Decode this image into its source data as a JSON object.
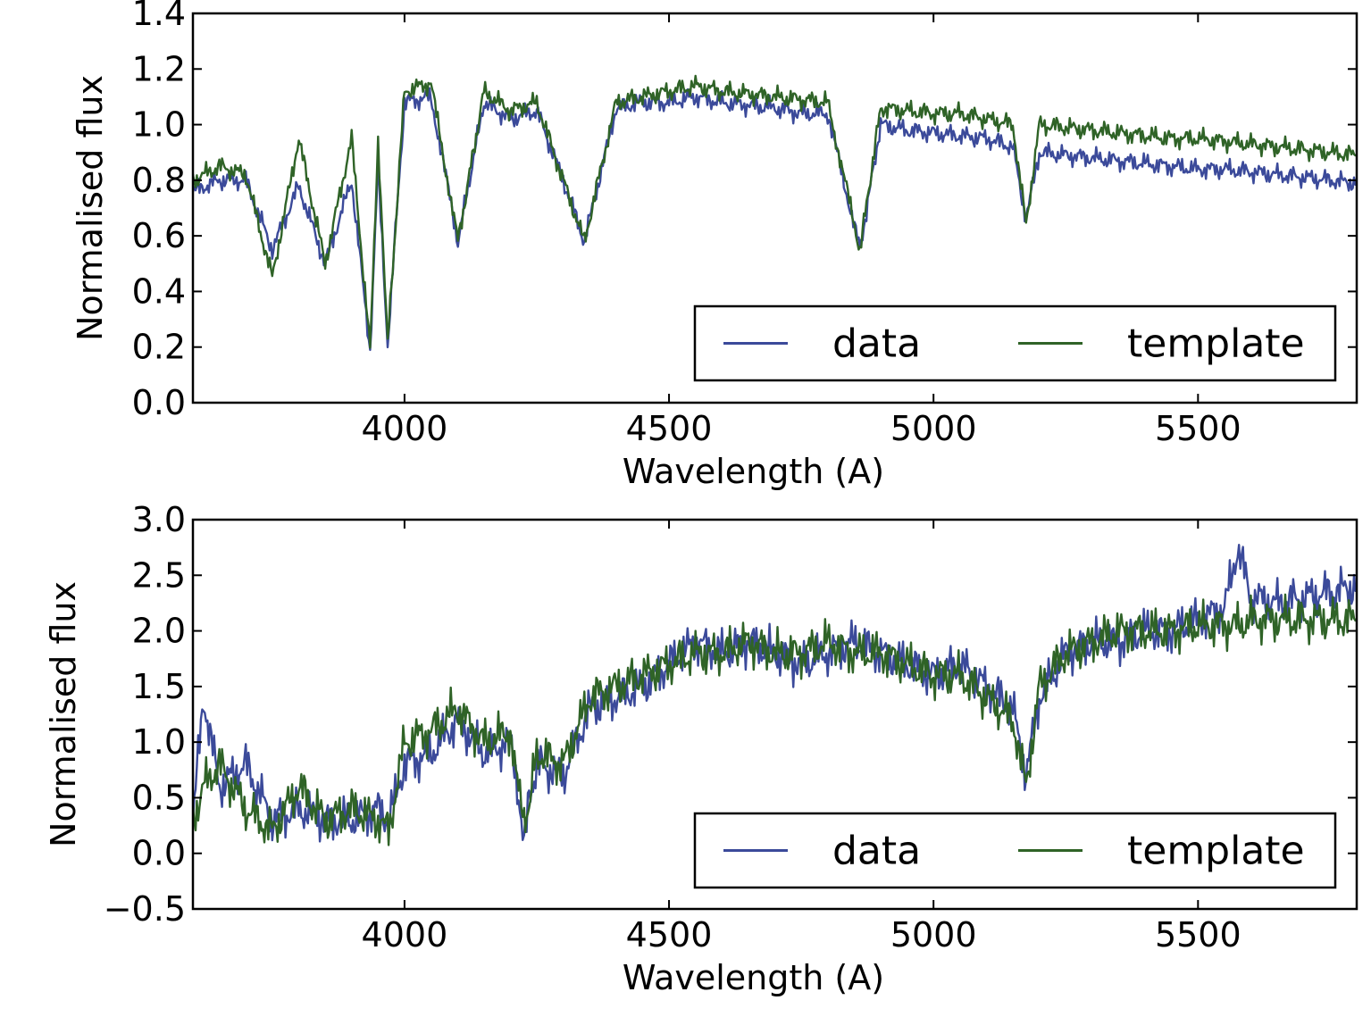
{
  "chart_data": [
    {
      "type": "line",
      "xlabel": "Wavelength (A)",
      "ylabel": "Normalised flux",
      "xlim": [
        3600,
        5800
      ],
      "ylim": [
        0.0,
        1.4
      ],
      "xticks": [
        4000,
        4500,
        5000,
        5500
      ],
      "yticks": [
        0.0,
        0.2,
        0.4,
        0.6,
        0.8,
        1.0,
        1.2,
        1.4
      ],
      "ytick_labels": [
        "0.0",
        "0.2",
        "0.4",
        "0.6",
        "0.8",
        "1.0",
        "1.2",
        "1.4"
      ],
      "legend": "lower-right",
      "series": [
        {
          "name": "data",
          "color": "#3b4a9a",
          "x": [
            3600,
            3650,
            3700,
            3750,
            3800,
            3850,
            3900,
            3935,
            3950,
            3968,
            4000,
            4050,
            4101,
            4150,
            4200,
            4250,
            4300,
            4340,
            4400,
            4450,
            4500,
            4550,
            4600,
            4650,
            4700,
            4750,
            4800,
            4861,
            4900,
            4950,
            5000,
            5050,
            5100,
            5150,
            5175,
            5200,
            5250,
            5300,
            5350,
            5400,
            5450,
            5500,
            5550,
            5600,
            5650,
            5700,
            5750,
            5800
          ],
          "y": [
            0.76,
            0.8,
            0.8,
            0.55,
            0.78,
            0.5,
            0.8,
            0.19,
            0.85,
            0.21,
            1.08,
            1.1,
            0.58,
            1.08,
            1.02,
            1.05,
            0.8,
            0.58,
            1.06,
            1.08,
            1.08,
            1.1,
            1.08,
            1.07,
            1.06,
            1.04,
            1.04,
            0.55,
            1.0,
            0.98,
            0.97,
            0.96,
            0.95,
            0.92,
            0.66,
            0.9,
            0.89,
            0.88,
            0.87,
            0.86,
            0.85,
            0.84,
            0.84,
            0.83,
            0.82,
            0.81,
            0.8,
            0.79
          ]
        },
        {
          "name": "template",
          "color": "#2f6327",
          "x": [
            3600,
            3650,
            3700,
            3750,
            3800,
            3850,
            3900,
            3935,
            3950,
            3968,
            4000,
            4050,
            4101,
            4150,
            4200,
            4250,
            4300,
            4340,
            4400,
            4450,
            4500,
            4550,
            4600,
            4650,
            4700,
            4750,
            4800,
            4861,
            4900,
            4950,
            5000,
            5050,
            5100,
            5150,
            5175,
            5200,
            5250,
            5300,
            5350,
            5400,
            5450,
            5500,
            5550,
            5600,
            5650,
            5700,
            5750,
            5800
          ],
          "y": [
            0.8,
            0.85,
            0.82,
            0.45,
            0.95,
            0.5,
            0.95,
            0.19,
            0.95,
            0.21,
            1.12,
            1.15,
            0.58,
            1.12,
            1.05,
            1.08,
            0.8,
            0.58,
            1.08,
            1.1,
            1.12,
            1.14,
            1.12,
            1.11,
            1.1,
            1.09,
            1.08,
            0.55,
            1.06,
            1.05,
            1.04,
            1.04,
            1.02,
            1.0,
            0.64,
            1.0,
            0.99,
            0.98,
            0.97,
            0.96,
            0.95,
            0.95,
            0.94,
            0.93,
            0.92,
            0.91,
            0.9,
            0.89
          ]
        }
      ]
    },
    {
      "type": "line",
      "xlabel": "Wavelength (A)",
      "ylabel": "Normalised flux",
      "xlim": [
        3600,
        5800
      ],
      "ylim": [
        -0.5,
        3.0
      ],
      "xticks": [
        4000,
        4500,
        5000,
        5500
      ],
      "yticks": [
        -0.5,
        0.0,
        0.5,
        1.0,
        1.5,
        2.0,
        2.5,
        3.0
      ],
      "ytick_labels": [
        "−0.5",
        "0.0",
        "0.5",
        "1.0",
        "1.5",
        "2.0",
        "2.5",
        "3.0"
      ],
      "legend": "lower-right",
      "series": [
        {
          "name": "data",
          "color": "#3b4a9a",
          "x": [
            3600,
            3620,
            3650,
            3700,
            3750,
            3800,
            3850,
            3900,
            3950,
            3970,
            4000,
            4050,
            4100,
            4150,
            4200,
            4226,
            4250,
            4300,
            4350,
            4400,
            4450,
            4500,
            4550,
            4600,
            4650,
            4700,
            4750,
            4800,
            4850,
            4900,
            4950,
            5000,
            5050,
            5100,
            5150,
            5175,
            5200,
            5250,
            5300,
            5350,
            5400,
            5450,
            5500,
            5550,
            5575,
            5600,
            5650,
            5700,
            5750,
            5800
          ],
          "y": [
            0.3,
            1.4,
            0.6,
            0.8,
            0.3,
            0.4,
            0.3,
            0.3,
            0.4,
            0.3,
            0.8,
            0.9,
            1.2,
            0.9,
            1.0,
            0.2,
            0.8,
            0.7,
            1.3,
            1.4,
            1.5,
            1.7,
            1.9,
            1.8,
            1.9,
            1.8,
            1.7,
            1.8,
            1.9,
            1.8,
            1.7,
            1.6,
            1.7,
            1.5,
            1.3,
            0.7,
            1.4,
            1.8,
            1.9,
            1.9,
            2.0,
            2.0,
            2.1,
            2.2,
            2.75,
            2.3,
            2.25,
            2.3,
            2.35,
            2.4
          ]
        },
        {
          "name": "template",
          "color": "#2f6327",
          "x": [
            3600,
            3620,
            3650,
            3700,
            3750,
            3800,
            3850,
            3900,
            3950,
            3970,
            4000,
            4050,
            4100,
            4150,
            4200,
            4226,
            4250,
            4300,
            4350,
            4400,
            4450,
            4500,
            4550,
            4600,
            4650,
            4700,
            4750,
            4800,
            4850,
            4900,
            4950,
            5000,
            5050,
            5100,
            5150,
            5175,
            5200,
            5250,
            5300,
            5350,
            5400,
            5450,
            5500,
            5550,
            5575,
            5600,
            5650,
            5700,
            5750,
            5800
          ],
          "y": [
            0.3,
            0.6,
            0.8,
            0.4,
            0.2,
            0.6,
            0.3,
            0.4,
            0.3,
            0.2,
            1.0,
            1.1,
            1.3,
            1.0,
            1.1,
            0.2,
            0.9,
            0.8,
            1.4,
            1.5,
            1.6,
            1.7,
            1.8,
            1.8,
            1.9,
            1.8,
            1.8,
            1.9,
            1.8,
            1.8,
            1.7,
            1.6,
            1.6,
            1.4,
            1.2,
            0.6,
            1.5,
            1.8,
            1.9,
            2.0,
            2.0,
            2.0,
            2.05,
            2.05,
            2.05,
            2.1,
            2.1,
            2.1,
            2.1,
            2.1
          ]
        }
      ]
    }
  ]
}
